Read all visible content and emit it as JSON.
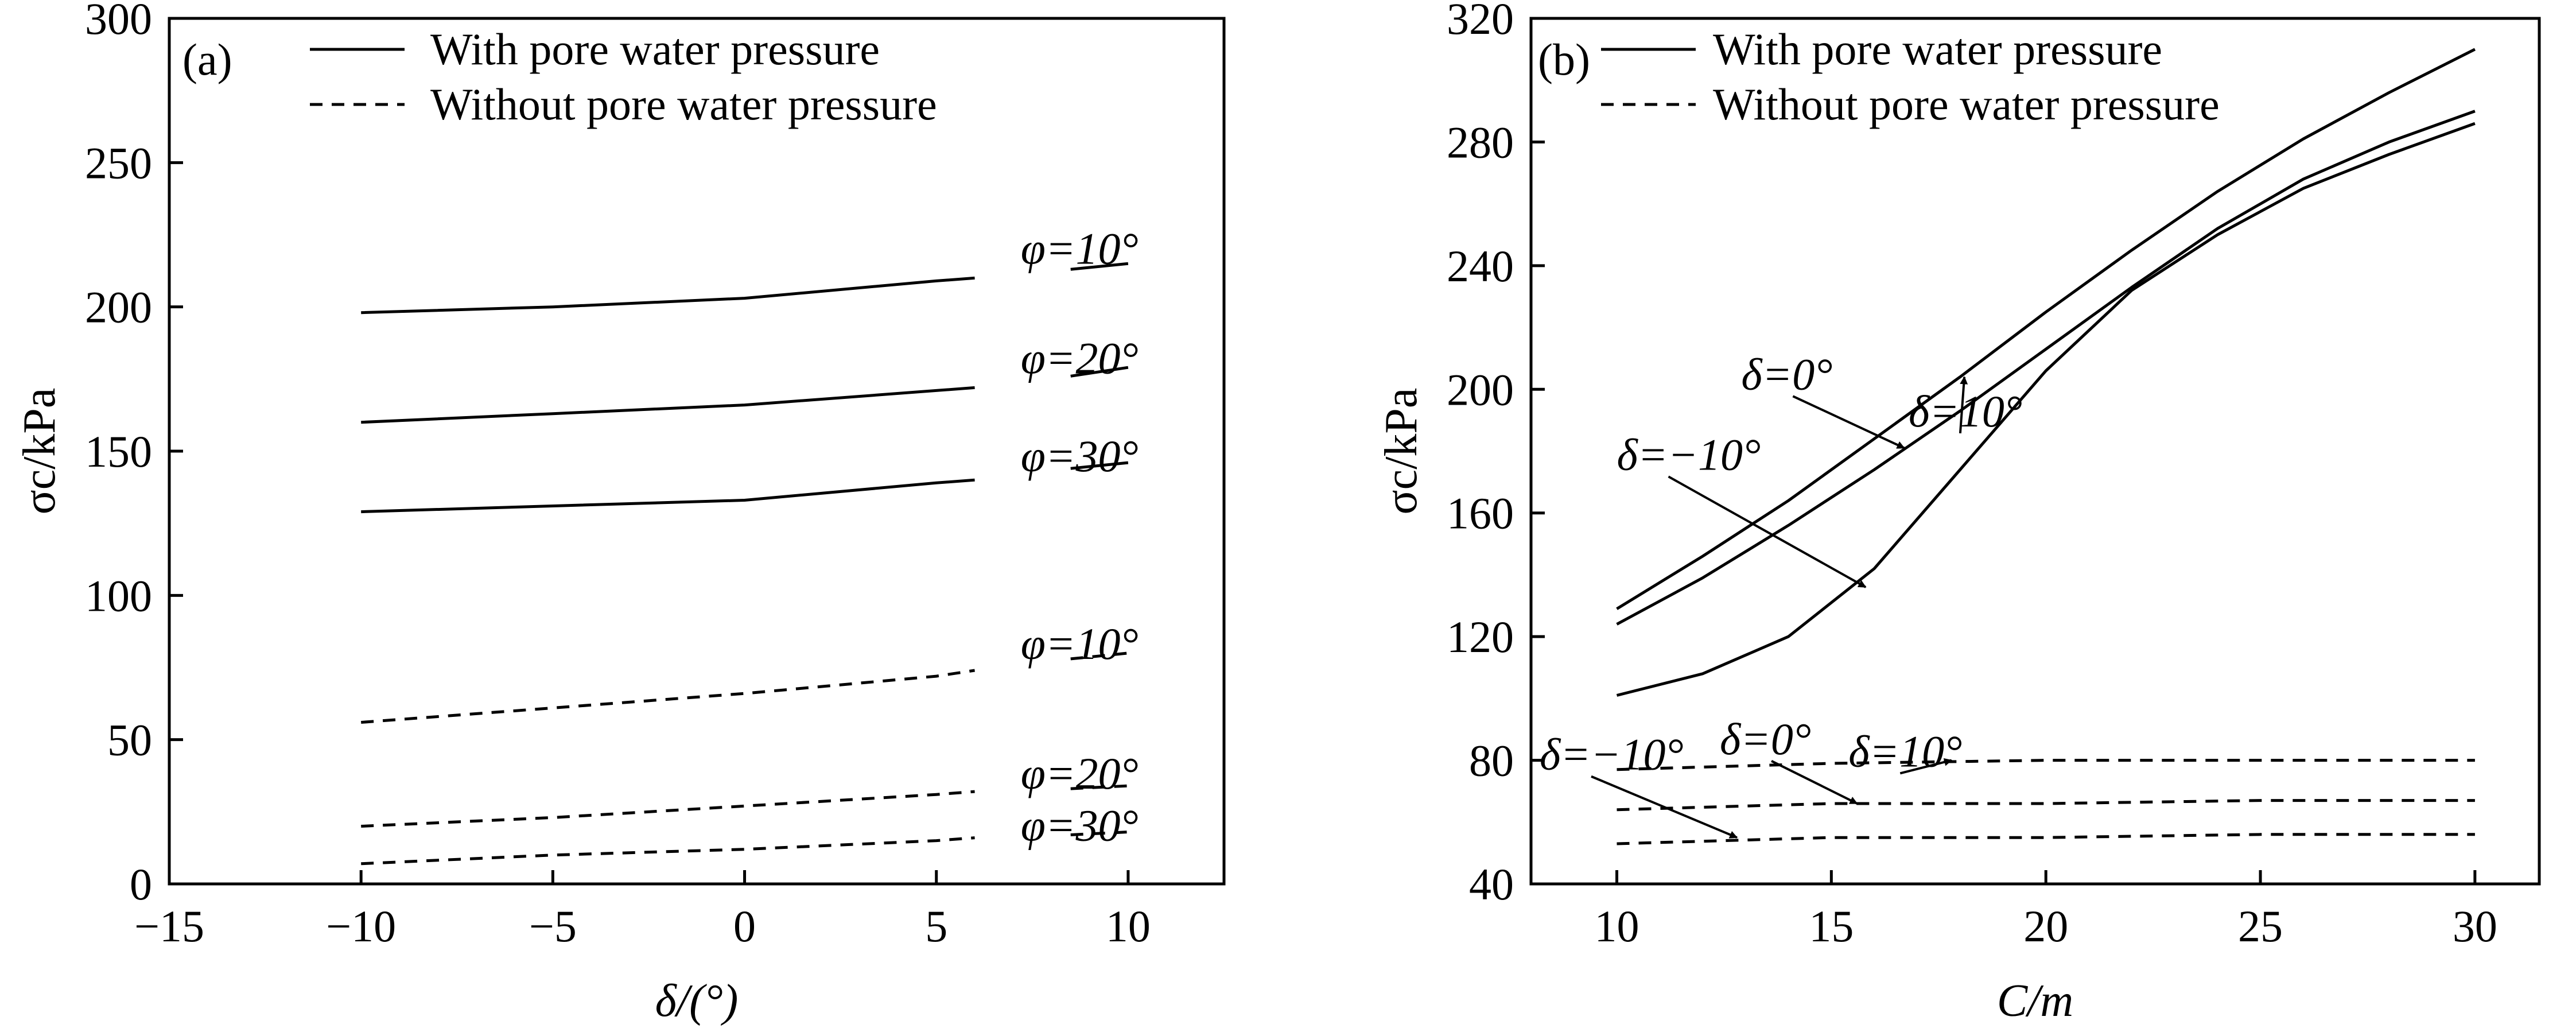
{
  "chart_data": [
    {
      "type": "line",
      "panel_label": "(a)",
      "xlabel": "δ/(°)",
      "ylabel": "σc/kPa",
      "xlim": [
        -15,
        12.5
      ],
      "ylim": [
        0,
        300
      ],
      "xticks": [
        "−15",
        "−10",
        "−5",
        "0",
        "5",
        "10"
      ],
      "xtick_values": [
        -15,
        -10,
        -5,
        0,
        5,
        10
      ],
      "yticks": [
        "0",
        "50",
        "100",
        "150",
        "200",
        "250",
        "300"
      ],
      "ytick_values": [
        0,
        50,
        100,
        150,
        200,
        250,
        300
      ],
      "grid": false,
      "legend": {
        "placement": "top",
        "entries": [
          {
            "label": "With pore water pressure",
            "style": "solid"
          },
          {
            "label": "Without pore water pressure",
            "style": "dashed"
          }
        ]
      },
      "series": [
        {
          "group": "With pore water pressure",
          "style": "solid",
          "x": [
            -10,
            -5,
            0,
            5,
            6,
            8.5,
            10
          ],
          "y": [
            198,
            200,
            203,
            209,
            210,
            213,
            215
          ],
          "gap_after_x": 6
        },
        {
          "group": "With pore water pressure",
          "style": "solid",
          "x": [
            -10,
            -5,
            0,
            5,
            6,
            8.5,
            10
          ],
          "y": [
            160,
            163,
            166,
            171,
            172,
            176,
            179
          ],
          "gap_after_x": 6
        },
        {
          "group": "With pore water pressure",
          "style": "solid",
          "x": [
            -10,
            -5,
            0,
            5,
            6,
            8.5,
            10
          ],
          "y": [
            129,
            131,
            133,
            139,
            140,
            144,
            146
          ],
          "gap_after_x": 6
        },
        {
          "group": "Without pore water pressure",
          "style": "dashed",
          "x": [
            -10,
            -5,
            0,
            5,
            6,
            8.5,
            10
          ],
          "y": [
            56,
            61,
            66,
            72,
            74,
            78,
            80
          ],
          "gap_after_x": 6
        },
        {
          "group": "Without pore water pressure",
          "style": "dashed",
          "x": [
            -10,
            -5,
            0,
            5,
            6,
            8.5,
            10
          ],
          "y": [
            20,
            23,
            27,
            31,
            32,
            33,
            34
          ],
          "gap_after_x": 6
        },
        {
          "group": "Without pore water pressure",
          "style": "dashed",
          "x": [
            -10,
            -5,
            0,
            5,
            6,
            8.5,
            10
          ],
          "y": [
            7,
            10,
            12,
            15,
            16,
            17,
            18
          ],
          "gap_after_x": 6
        }
      ],
      "annotations": [
        {
          "text": "φ=10°",
          "x": 7.2,
          "y": 215
        },
        {
          "text": "φ=20°",
          "x": 7.2,
          "y": 177
        },
        {
          "text": "φ=30°",
          "x": 7.2,
          "y": 143
        },
        {
          "text": "φ=10°",
          "x": 7.2,
          "y": 78
        },
        {
          "text": "φ=20°",
          "x": 7.2,
          "y": 33
        },
        {
          "text": "φ=30°",
          "x": 7.2,
          "y": 15
        }
      ]
    },
    {
      "type": "line",
      "panel_label": "(b)",
      "xlabel": "C/m",
      "ylabel": "σc/kPa",
      "xlim": [
        8,
        31.5
      ],
      "ylim": [
        40,
        320
      ],
      "xticks": [
        "10",
        "15",
        "20",
        "25",
        "30"
      ],
      "xtick_values": [
        10,
        15,
        20,
        25,
        30
      ],
      "yticks": [
        "40",
        "80",
        "120",
        "160",
        "200",
        "240",
        "280",
        "320"
      ],
      "ytick_values": [
        40,
        80,
        120,
        160,
        200,
        240,
        280,
        320
      ],
      "grid": false,
      "legend": {
        "placement": "top",
        "entries": [
          {
            "label": "With pore water pressure",
            "style": "solid"
          },
          {
            "label": "Without pore water pressure",
            "style": "dashed"
          }
        ]
      },
      "series": [
        {
          "group": "With pore water pressure",
          "style": "solid",
          "x": [
            10,
            12,
            14,
            16,
            18,
            20,
            22,
            24,
            26,
            28,
            30
          ],
          "y": [
            129,
            146,
            164,
            184,
            204,
            225,
            245,
            264,
            281,
            296,
            310
          ]
        },
        {
          "group": "With pore water pressure",
          "style": "solid",
          "x": [
            10,
            12,
            14,
            16,
            18,
            20,
            22,
            24,
            26,
            28,
            30
          ],
          "y": [
            124,
            139,
            156,
            174,
            193,
            213,
            233,
            252,
            268,
            280,
            290
          ]
        },
        {
          "group": "With pore water pressure",
          "style": "solid",
          "x": [
            10,
            12,
            14,
            16,
            18,
            20,
            22,
            24,
            26,
            28,
            30
          ],
          "y": [
            101,
            108,
            120,
            142,
            174,
            206,
            232,
            250,
            265,
            276,
            286
          ]
        },
        {
          "group": "Without pore water pressure",
          "style": "dashed",
          "x": [
            10,
            15,
            20,
            25,
            30
          ],
          "y": [
            77,
            79,
            80,
            80,
            80
          ]
        },
        {
          "group": "Without pore water pressure",
          "style": "dashed",
          "x": [
            10,
            15,
            20,
            25,
            30
          ],
          "y": [
            64,
            66,
            66,
            67,
            67
          ]
        },
        {
          "group": "Without pore water pressure",
          "style": "dashed",
          "x": [
            10,
            15,
            20,
            25,
            30
          ],
          "y": [
            53,
            55,
            55,
            56,
            56
          ]
        }
      ],
      "annotations": [
        {
          "text": "δ=10°",
          "x": 16.8,
          "y": 188,
          "arrow_to": [
            18.1,
            204
          ]
        },
        {
          "text": "δ=0°",
          "x": 12.9,
          "y": 200,
          "arrow_to": [
            16.7,
            181
          ]
        },
        {
          "text": "δ=−10°",
          "x": 10.0,
          "y": 174,
          "arrow_to": [
            15.8,
            136
          ]
        },
        {
          "text": "δ=10°",
          "x": 15.4,
          "y": 78,
          "arrow_to": [
            17.8,
            80
          ]
        },
        {
          "text": "δ=0°",
          "x": 12.4,
          "y": 82,
          "arrow_to": [
            15.6,
            66
          ]
        },
        {
          "text": "δ=−10°",
          "x": 8.2,
          "y": 77,
          "arrow_to": [
            12.8,
            55
          ]
        }
      ]
    }
  ]
}
